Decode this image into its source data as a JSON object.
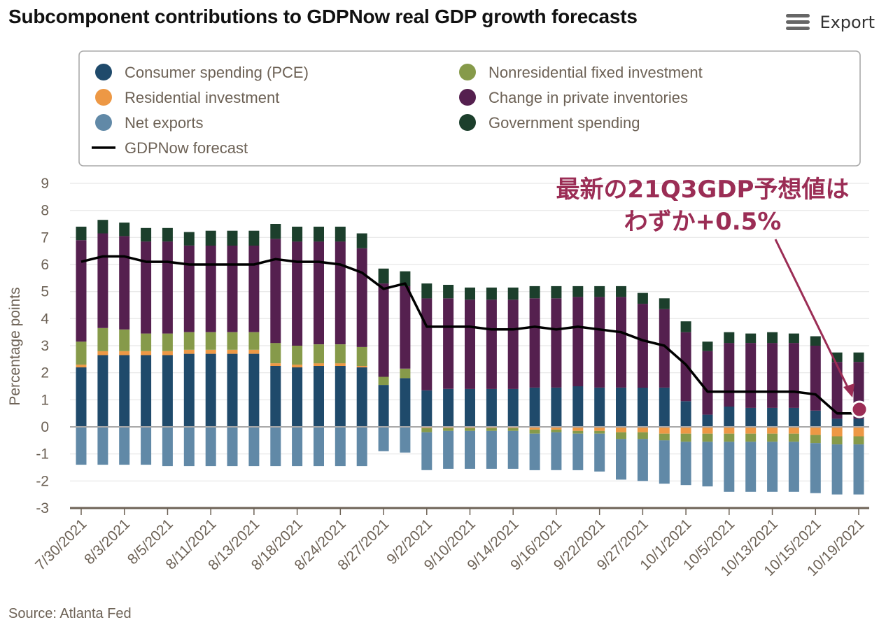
{
  "title": "Subcomponent contributions to GDPNow real GDP growth forecasts",
  "export": {
    "label": "Export",
    "icon": "hamburger-menu-icon"
  },
  "source": "Source: Atlanta Fed",
  "annotation": {
    "line1": "最新の21Q3GDP予想値は",
    "line2": "わずか+0.5%",
    "color": "#9b2d55"
  },
  "colors": {
    "pce": "#1f4a6b",
    "resinv": "#ed9845",
    "netexp": "#6189a7",
    "nonres": "#869a4a",
    "inv": "#55204f",
    "gov": "#1c3f2c",
    "forecast": "#000000"
  },
  "chart_data": {
    "type": "bar",
    "stacked": true,
    "ylabel": "Percentage points",
    "ylim": [
      -3,
      9
    ],
    "yticks": [
      "9",
      "8",
      "7",
      "6",
      "5",
      "4",
      "3",
      "2",
      "1",
      "0",
      "-1",
      "-2",
      "-3"
    ],
    "x_tick_labels": [
      "7/30/2021",
      "8/3/2021",
      "8/5/2021",
      "8/11/2021",
      "8/13/2021",
      "8/18/2021",
      "8/24/2021",
      "8/27/2021",
      "9/2/2021",
      "9/10/2021",
      "9/14/2021",
      "9/16/2021",
      "9/22/2021",
      "9/27/2021",
      "10/1/2021",
      "10/5/2021",
      "10/13/2021",
      "10/15/2021",
      "10/19/2021"
    ],
    "legend": {
      "position": "top",
      "grid": false
    },
    "series": [
      {
        "key": "pce",
        "name": "Consumer spending (PCE)",
        "values": [
          2.2,
          2.65,
          2.65,
          2.65,
          2.65,
          2.7,
          2.7,
          2.7,
          2.7,
          2.25,
          2.2,
          2.25,
          2.25,
          2.2,
          1.55,
          1.8,
          1.35,
          1.4,
          1.4,
          1.4,
          1.4,
          1.45,
          1.45,
          1.5,
          1.45,
          1.45,
          1.45,
          1.45,
          0.95,
          0.45,
          0.75,
          0.7,
          0.7,
          0.7,
          0.6,
          0.3,
          0.3
        ]
      },
      {
        "key": "resinv",
        "name": "Residential investment",
        "values": [
          0.1,
          0.15,
          0.15,
          0.15,
          0.15,
          0.15,
          0.15,
          0.15,
          0.15,
          0.1,
          0.1,
          0.1,
          0.1,
          0.05,
          0.0,
          0.0,
          -0.05,
          -0.05,
          -0.05,
          -0.05,
          -0.05,
          -0.1,
          -0.1,
          -0.15,
          -0.15,
          -0.2,
          -0.2,
          -0.25,
          -0.25,
          -0.25,
          -0.25,
          -0.25,
          -0.25,
          -0.25,
          -0.3,
          -0.35,
          -0.35
        ]
      },
      {
        "key": "netexp",
        "name": "Net exports",
        "values": [
          -1.4,
          -1.4,
          -1.4,
          -1.4,
          -1.45,
          -1.45,
          -1.45,
          -1.45,
          -1.45,
          -1.45,
          -1.45,
          -1.45,
          -1.45,
          -1.45,
          -0.9,
          -0.95,
          -1.4,
          -1.4,
          -1.4,
          -1.4,
          -1.4,
          -1.35,
          -1.4,
          -1.35,
          -1.4,
          -1.5,
          -1.55,
          -1.6,
          -1.6,
          -1.65,
          -1.85,
          -1.85,
          -1.85,
          -1.85,
          -1.85,
          -1.85,
          -1.85
        ]
      },
      {
        "key": "nonres",
        "name": "Nonresidential fixed investment",
        "values": [
          0.85,
          0.85,
          0.8,
          0.65,
          0.65,
          0.65,
          0.65,
          0.65,
          0.65,
          0.75,
          0.7,
          0.7,
          0.7,
          0.7,
          0.3,
          0.35,
          -0.15,
          -0.1,
          -0.1,
          -0.1,
          -0.1,
          -0.15,
          -0.1,
          -0.1,
          -0.1,
          -0.25,
          -0.25,
          -0.25,
          -0.3,
          -0.3,
          -0.3,
          -0.3,
          -0.3,
          -0.3,
          -0.3,
          -0.3,
          -0.3
        ]
      },
      {
        "key": "inv",
        "name": "Change in private inventories",
        "values": [
          3.75,
          3.5,
          3.45,
          3.4,
          3.4,
          3.2,
          3.2,
          3.2,
          3.2,
          3.85,
          3.85,
          3.8,
          3.8,
          3.65,
          3.45,
          3.05,
          3.4,
          3.35,
          3.3,
          3.3,
          3.3,
          3.3,
          3.3,
          3.3,
          3.35,
          3.35,
          3.1,
          2.9,
          2.55,
          2.35,
          2.35,
          2.4,
          2.4,
          2.4,
          2.4,
          2.1,
          2.1
        ]
      },
      {
        "key": "gov",
        "name": "Government spending",
        "values": [
          0.5,
          0.5,
          0.5,
          0.5,
          0.5,
          0.5,
          0.55,
          0.55,
          0.55,
          0.55,
          0.55,
          0.55,
          0.55,
          0.55,
          0.55,
          0.55,
          0.55,
          0.5,
          0.45,
          0.45,
          0.45,
          0.45,
          0.45,
          0.4,
          0.4,
          0.4,
          0.4,
          0.4,
          0.4,
          0.35,
          0.4,
          0.35,
          0.4,
          0.35,
          0.35,
          0.35,
          0.35
        ]
      }
    ],
    "line_series": {
      "key": "forecast",
      "name": "GDPNow forecast",
      "values": [
        6.1,
        6.3,
        6.3,
        6.1,
        6.1,
        6.0,
        6.0,
        6.0,
        6.0,
        6.2,
        6.1,
        6.1,
        6.0,
        5.7,
        5.1,
        5.3,
        3.7,
        3.7,
        3.7,
        3.6,
        3.6,
        3.7,
        3.6,
        3.7,
        3.6,
        3.5,
        3.2,
        3.0,
        2.3,
        1.3,
        1.3,
        1.3,
        1.3,
        1.3,
        1.2,
        0.5,
        0.5
      ]
    }
  }
}
